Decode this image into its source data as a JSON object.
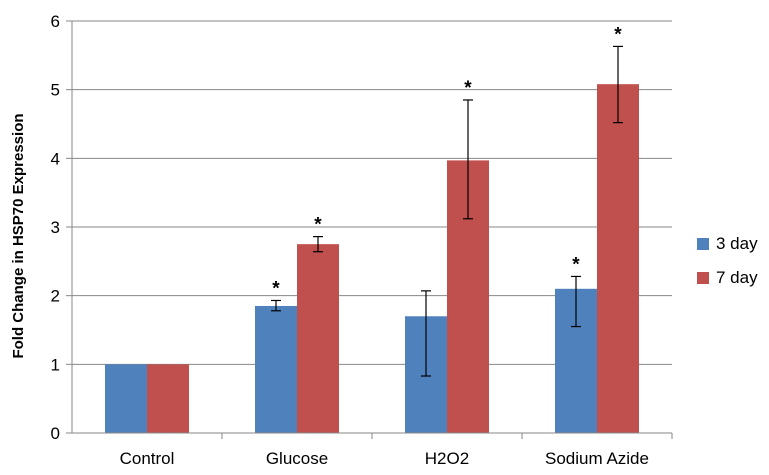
{
  "chart_data": {
    "type": "bar",
    "title": "",
    "xlabel": "",
    "ylabel": "Fold Change in HSP70 Expression",
    "ylim": [
      0,
      6
    ],
    "yticks": [
      "0",
      "1",
      "2",
      "3",
      "4",
      "5",
      "6"
    ],
    "grid": true,
    "legend_position": "right",
    "categories": [
      "Control",
      "Glucose",
      "H2O2",
      "Sodium Azide"
    ],
    "series": [
      {
        "name": "3 day",
        "color": "#4F81BD",
        "values": [
          1.0,
          1.85,
          1.7,
          2.1
        ],
        "error_low": [
          1.0,
          1.78,
          0.83,
          1.55
        ],
        "error_high": [
          1.0,
          1.93,
          2.07,
          2.28
        ],
        "significance": [
          "",
          "*",
          "",
          "*"
        ]
      },
      {
        "name": "7 day",
        "color": "#C0504D",
        "values": [
          1.0,
          2.75,
          3.97,
          5.08
        ],
        "error_low": [
          1.0,
          2.64,
          3.12,
          4.52
        ],
        "error_high": [
          1.0,
          2.86,
          4.85,
          5.63
        ],
        "significance": [
          "",
          "*",
          "*",
          "*"
        ]
      }
    ]
  }
}
